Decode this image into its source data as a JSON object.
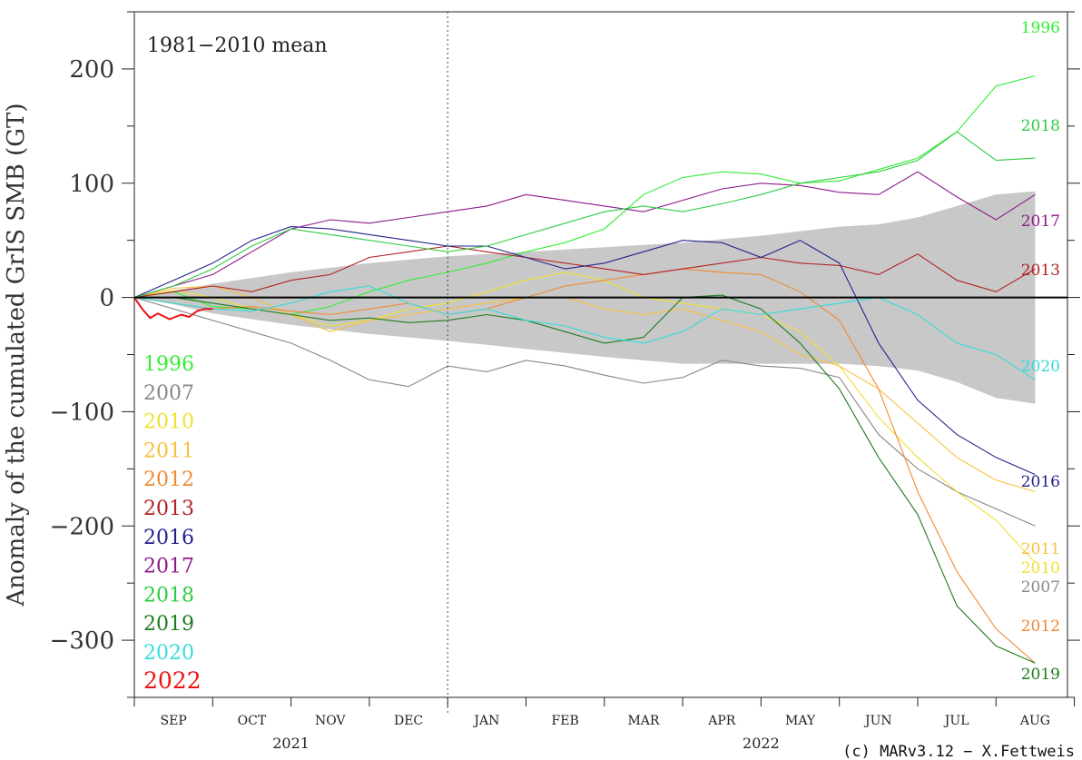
{
  "chart_data": {
    "type": "line",
    "ylabel": "Anomaly of the cumulated GrIS SMB (GT)",
    "ylim": [
      -350,
      250
    ],
    "yticks": [
      200,
      100,
      0,
      -100,
      -200,
      -300
    ],
    "ytick_labels": [
      "200",
      "100",
      "0",
      "−100",
      "−200",
      "−300"
    ],
    "months": [
      "SEP",
      "OCT",
      "NOV",
      "DEC",
      "JAN",
      "FEB",
      "MAR",
      "APR",
      "MAY",
      "JUN",
      "JUL",
      "AUG"
    ],
    "year_labels": [
      "2021",
      "2022"
    ],
    "note": "1981−2010 mean",
    "credit": "(c) MARv3.12 − X.Fettweis",
    "grid": false,
    "legend_position": "left",
    "mean_band": {
      "t": [
        0,
        0.5,
        1,
        2,
        3,
        4,
        5,
        6,
        7,
        8,
        9,
        9.5,
        10,
        10.5,
        11,
        11.5
      ],
      "upper": [
        0,
        6,
        12,
        22,
        30,
        36,
        40,
        44,
        48,
        54,
        62,
        64,
        70,
        80,
        90,
        93
      ],
      "lower": [
        0,
        -6,
        -14,
        -24,
        -32,
        -38,
        -45,
        -52,
        -58,
        -58,
        -58,
        -60,
        -64,
        -74,
        -88,
        -93
      ]
    },
    "series": [
      {
        "name": "1996",
        "color": "#33ee33",
        "x": [
          0,
          0.5,
          1,
          1.5,
          2,
          2.5,
          3,
          3.5,
          4,
          4.5,
          5,
          5.5,
          6,
          6.5,
          7,
          7.5,
          8,
          8.5,
          9,
          9.5,
          10,
          10.5,
          11,
          11.5
        ],
        "y": [
          0,
          5,
          -8,
          -10,
          -15,
          -8,
          5,
          15,
          22,
          30,
          40,
          48,
          60,
          90,
          105,
          110,
          108,
          100,
          102,
          112,
          122,
          145,
          185,
          194
        ]
      },
      {
        "name": "2007",
        "color": "#888888",
        "x": [
          0,
          0.5,
          1,
          1.5,
          2,
          2.5,
          3,
          3.5,
          4,
          4.5,
          5,
          5.5,
          6,
          6.5,
          7,
          7.5,
          8,
          8.5,
          9,
          9.5,
          10,
          10.5,
          11,
          11.5
        ],
        "y": [
          0,
          -10,
          -20,
          -30,
          -40,
          -55,
          -72,
          -78,
          -60,
          -65,
          -55,
          -60,
          -68,
          -75,
          -70,
          -55,
          -60,
          -62,
          -70,
          -120,
          -150,
          -170,
          -185,
          -200
        ]
      },
      {
        "name": "2010",
        "color": "#f0e030",
        "x": [
          0,
          0.5,
          1,
          1.5,
          2,
          2.5,
          3,
          3.5,
          4,
          4.5,
          5,
          5.5,
          6,
          6.5,
          7,
          7.5,
          8,
          8.5,
          9,
          9.5,
          10,
          10.5,
          11,
          11.5
        ],
        "y": [
          0,
          6,
          0,
          -10,
          -15,
          -25,
          -20,
          -10,
          -5,
          5,
          15,
          22,
          15,
          0,
          -5,
          -10,
          -15,
          -30,
          -60,
          -105,
          -140,
          -170,
          -195,
          -232
        ]
      },
      {
        "name": "2011",
        "color": "#f7c040",
        "x": [
          0,
          0.5,
          1,
          1.5,
          2,
          2.5,
          3,
          3.5,
          4,
          4.5,
          5,
          5.5,
          6,
          6.5,
          7,
          7.5,
          8,
          8.5,
          9,
          9.5,
          10,
          10.5,
          11,
          11.5
        ],
        "y": [
          0,
          8,
          10,
          0,
          -15,
          -30,
          -20,
          -15,
          -10,
          -5,
          0,
          0,
          -10,
          -15,
          -10,
          -20,
          -30,
          -50,
          -60,
          -80,
          -110,
          -140,
          -160,
          -170
        ]
      },
      {
        "name": "2012",
        "color": "#f08a30",
        "x": [
          0,
          0.5,
          1,
          1.5,
          2,
          2.5,
          3,
          3.5,
          4,
          4.5,
          5,
          5.5,
          6,
          6.5,
          7,
          7.5,
          8,
          8.5,
          9,
          9.5,
          10,
          10.5,
          11,
          11.5
        ],
        "y": [
          0,
          -5,
          -10,
          -8,
          -12,
          -15,
          -10,
          -5,
          -15,
          -10,
          0,
          10,
          15,
          20,
          25,
          22,
          20,
          5,
          -20,
          -80,
          -170,
          -240,
          -290,
          -320
        ]
      },
      {
        "name": "2013",
        "color": "#b22222",
        "x": [
          0,
          0.5,
          1,
          1.5,
          2,
          2.5,
          3,
          3.5,
          4,
          4.5,
          5,
          5.5,
          6,
          6.5,
          7,
          7.5,
          8,
          8.5,
          9,
          9.5,
          10,
          10.5,
          11,
          11.5
        ],
        "y": [
          0,
          5,
          10,
          5,
          15,
          20,
          35,
          40,
          45,
          40,
          35,
          30,
          25,
          20,
          25,
          30,
          35,
          30,
          28,
          20,
          38,
          15,
          5,
          25
        ]
      },
      {
        "name": "2016",
        "color": "#22228b",
        "x": [
          0,
          0.5,
          1,
          1.5,
          2,
          2.5,
          3,
          3.5,
          4,
          4.5,
          5,
          5.5,
          6,
          6.5,
          7,
          7.5,
          8,
          8.5,
          9,
          9.5,
          10,
          10.5,
          11,
          11.5
        ],
        "y": [
          0,
          15,
          30,
          50,
          62,
          60,
          55,
          50,
          45,
          45,
          35,
          25,
          30,
          40,
          50,
          48,
          35,
          50,
          30,
          -40,
          -90,
          -120,
          -140,
          -155
        ]
      },
      {
        "name": "2017",
        "color": "#8b1a8b",
        "x": [
          0,
          0.5,
          1,
          1.5,
          2,
          2.5,
          3,
          3.5,
          4,
          4.5,
          5,
          5.5,
          6,
          6.5,
          7,
          7.5,
          8,
          8.5,
          9,
          9.5,
          10,
          10.5,
          11,
          11.5
        ],
        "y": [
          0,
          10,
          20,
          40,
          60,
          68,
          65,
          70,
          75,
          80,
          90,
          85,
          80,
          75,
          85,
          95,
          100,
          98,
          92,
          90,
          110,
          88,
          68,
          90
        ]
      },
      {
        "name": "2018",
        "color": "#2ecc40",
        "x": [
          0,
          0.5,
          1,
          1.5,
          2,
          2.5,
          3,
          3.5,
          4,
          4.5,
          5,
          5.5,
          6,
          6.5,
          7,
          7.5,
          8,
          8.5,
          9,
          9.5,
          10,
          10.5,
          11,
          11.5
        ],
        "y": [
          0,
          10,
          25,
          45,
          60,
          55,
          50,
          45,
          40,
          45,
          55,
          65,
          75,
          80,
          75,
          82,
          90,
          100,
          105,
          110,
          120,
          145,
          120,
          122
        ]
      },
      {
        "name": "2019",
        "color": "#1e7b1e",
        "x": [
          0,
          0.5,
          1,
          1.5,
          2,
          2.5,
          3,
          3.5,
          4,
          4.5,
          5,
          5.5,
          6,
          6.5,
          7,
          7.5,
          8,
          8.5,
          9,
          9.5,
          10,
          10.5,
          11,
          11.5
        ],
        "y": [
          0,
          0,
          -5,
          -10,
          -15,
          -20,
          -18,
          -22,
          -20,
          -15,
          -20,
          -30,
          -40,
          -35,
          0,
          2,
          -10,
          -40,
          -80,
          -140,
          -190,
          -270,
          -305,
          -320
        ]
      },
      {
        "name": "2020",
        "color": "#33dddd",
        "x": [
          0,
          0.5,
          1,
          1.5,
          2,
          2.5,
          3,
          3.5,
          4,
          4.5,
          5,
          5.5,
          6,
          6.5,
          7,
          7.5,
          8,
          8.5,
          9,
          9.5,
          10,
          10.5,
          11,
          11.5
        ],
        "y": [
          0,
          -5,
          -10,
          -12,
          -5,
          5,
          10,
          -5,
          -15,
          -10,
          -20,
          -25,
          -35,
          -40,
          -30,
          -10,
          -15,
          -10,
          -5,
          0,
          -15,
          -40,
          -50,
          -72
        ]
      },
      {
        "name": "2022",
        "color": "#ee1111",
        "x": [
          0,
          0.1,
          0.2,
          0.3,
          0.45,
          0.6,
          0.7,
          0.8,
          0.9,
          1.0
        ],
        "y": [
          0,
          -10,
          -18,
          -14,
          -19,
          -15,
          -17,
          -12,
          -10,
          -10
        ]
      }
    ]
  }
}
